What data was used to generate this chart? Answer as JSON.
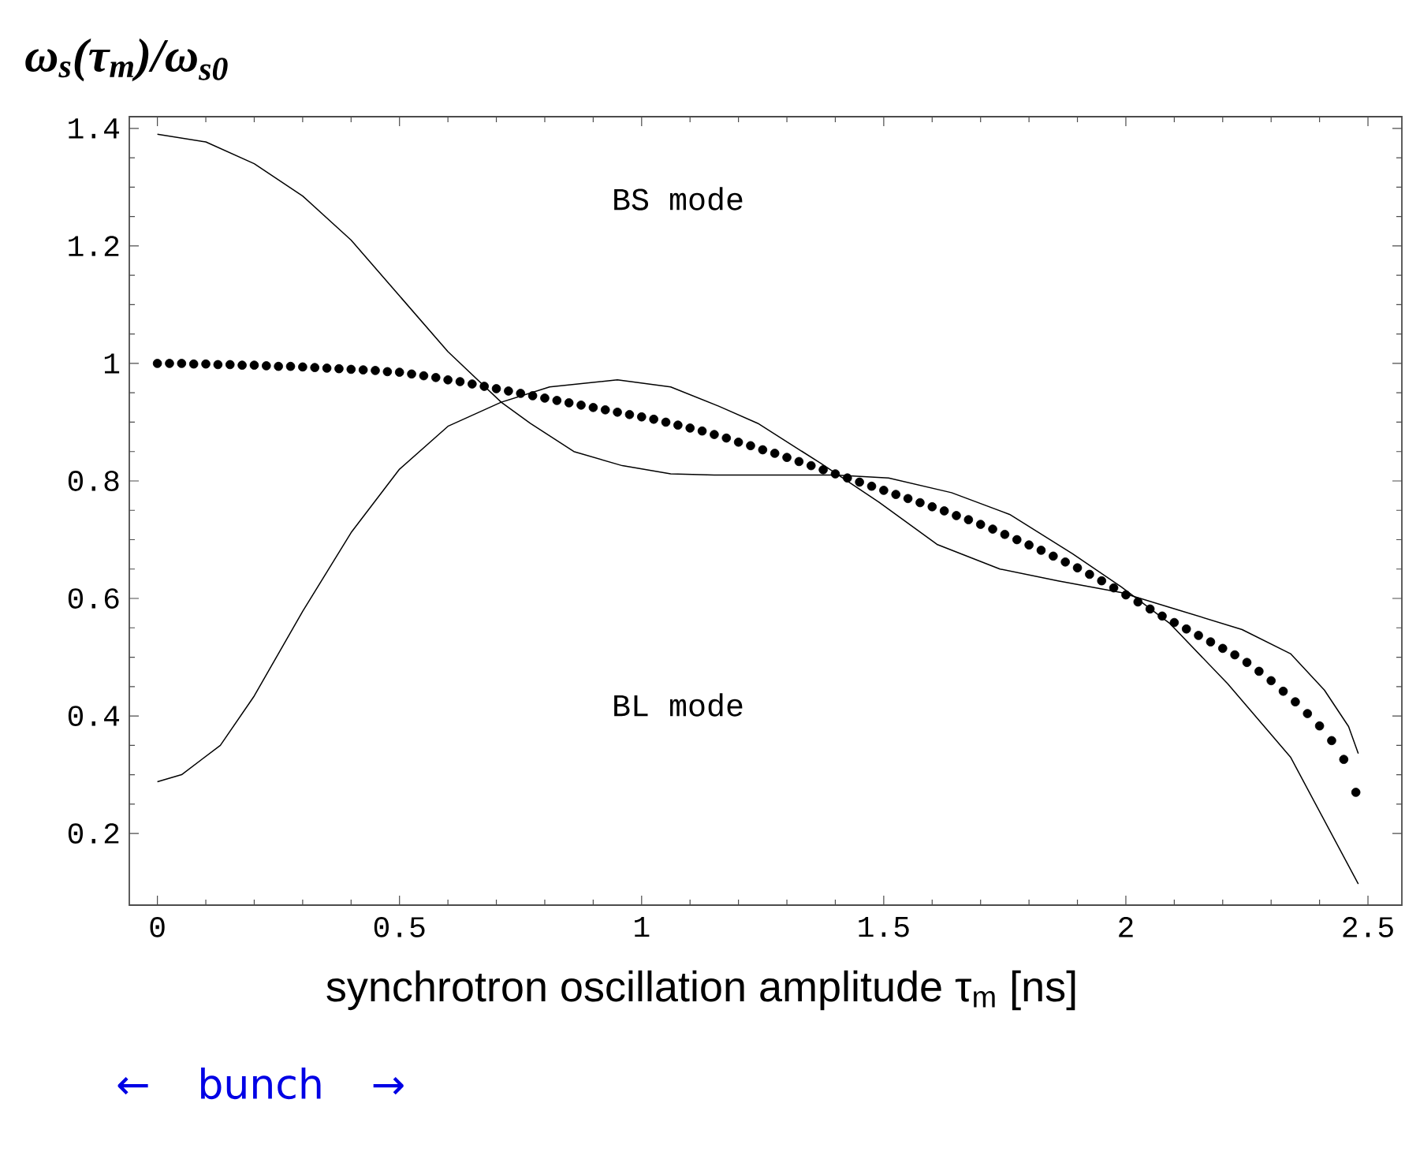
{
  "chart_data": {
    "type": "line",
    "ylabel": "ω$_{s}$(τ$_{m}$)/ω$_{s0}$",
    "xlabel": "synchrotron oscillation amplitude τ$_{m}$ [ns]",
    "xlim": [
      -0.058,
      2.57
    ],
    "ylim": [
      0.078,
      1.42
    ],
    "xticks": [
      0,
      0.5,
      1,
      1.5,
      2,
      2.5
    ],
    "yticks": [
      0.2,
      0.4,
      0.6,
      0.8,
      1,
      1.2,
      1.4
    ],
    "annotations": [
      "BS mode",
      "BL mode",
      "←     bunch     →"
    ],
    "series": [
      {
        "color": "#000000",
        "x": [
          0,
          0.1,
          0.2,
          0.3,
          0.4,
          0.5,
          0.6,
          0.71,
          0.77,
          0.86,
          0.96,
          1.06,
          1.15,
          1.29,
          1.4,
          1.51,
          1.64,
          1.76,
          1.89,
          1.99,
          2.09,
          2.21,
          2.34,
          2.48
        ],
        "values": [
          1.39,
          1.377,
          1.34,
          1.285,
          1.21,
          1.115,
          1.02,
          0.934,
          0.898,
          0.85,
          0.826,
          0.812,
          0.81,
          0.81,
          0.81,
          0.805,
          0.78,
          0.743,
          0.676,
          0.62,
          0.558,
          0.455,
          0.33,
          0.114
        ]
      },
      {
        "color": "#000000",
        "x": [
          0,
          0.05,
          0.13,
          0.2,
          0.3,
          0.4,
          0.5,
          0.6,
          0.71,
          0.81,
          0.95,
          1.06,
          1.16,
          1.24,
          1.37,
          1.49,
          1.61,
          1.74,
          1.86,
          1.99,
          2.11,
          2.24,
          2.34,
          2.41,
          2.46,
          2.48
        ],
        "values": [
          0.288,
          0.3,
          0.35,
          0.434,
          0.578,
          0.712,
          0.82,
          0.893,
          0.934,
          0.96,
          0.972,
          0.96,
          0.927,
          0.898,
          0.83,
          0.764,
          0.692,
          0.65,
          0.63,
          0.61,
          0.58,
          0.547,
          0.506,
          0.444,
          0.382,
          0.336
        ]
      },
      {
        "type": "scatter",
        "marker": "circle",
        "color": "#000000",
        "x": [
          0,
          0.025,
          0.05,
          0.075,
          0.1,
          0.125,
          0.15,
          0.175,
          0.2,
          0.225,
          0.25,
          0.275,
          0.3,
          0.325,
          0.35,
          0.375,
          0.4,
          0.425,
          0.45,
          0.475,
          0.5,
          0.525,
          0.55,
          0.575,
          0.6,
          0.625,
          0.65,
          0.675,
          0.7,
          0.725,
          0.75,
          0.775,
          0.8,
          0.825,
          0.85,
          0.875,
          0.9,
          0.925,
          0.95,
          0.975,
          1.0,
          1.025,
          1.05,
          1.075,
          1.1,
          1.125,
          1.15,
          1.175,
          1.2,
          1.225,
          1.25,
          1.275,
          1.3,
          1.325,
          1.35,
          1.375,
          1.4,
          1.425,
          1.45,
          1.475,
          1.5,
          1.525,
          1.55,
          1.575,
          1.6,
          1.625,
          1.65,
          1.675,
          1.7,
          1.725,
          1.75,
          1.775,
          1.8,
          1.825,
          1.85,
          1.875,
          1.9,
          1.925,
          1.95,
          1.975,
          2.0,
          2.025,
          2.05,
          2.075,
          2.1,
          2.125,
          2.15,
          2.175,
          2.2,
          2.225,
          2.25,
          2.275,
          2.3,
          2.325,
          2.35,
          2.375,
          2.4,
          2.425,
          2.45,
          2.475
        ],
        "values": [
          1.0,
          1.0,
          1.0,
          0.999,
          0.999,
          0.998,
          0.998,
          0.997,
          0.997,
          0.996,
          0.995,
          0.995,
          0.994,
          0.993,
          0.992,
          0.991,
          0.99,
          0.989,
          0.988,
          0.986,
          0.985,
          0.982,
          0.979,
          0.976,
          0.972,
          0.969,
          0.965,
          0.961,
          0.957,
          0.953,
          0.949,
          0.945,
          0.941,
          0.937,
          0.933,
          0.929,
          0.925,
          0.921,
          0.917,
          0.913,
          0.909,
          0.905,
          0.9,
          0.895,
          0.89,
          0.885,
          0.879,
          0.873,
          0.866,
          0.86,
          0.853,
          0.847,
          0.84,
          0.833,
          0.826,
          0.819,
          0.812,
          0.805,
          0.798,
          0.791,
          0.784,
          0.777,
          0.77,
          0.763,
          0.756,
          0.749,
          0.741,
          0.734,
          0.726,
          0.718,
          0.709,
          0.7,
          0.691,
          0.682,
          0.672,
          0.662,
          0.652,
          0.641,
          0.63,
          0.618,
          0.606,
          0.594,
          0.582,
          0.57,
          0.559,
          0.548,
          0.537,
          0.526,
          0.515,
          0.504,
          0.491,
          0.476,
          0.46,
          0.442,
          0.424,
          0.404,
          0.383,
          0.358,
          0.326,
          0.27
        ]
      }
    ]
  }
}
